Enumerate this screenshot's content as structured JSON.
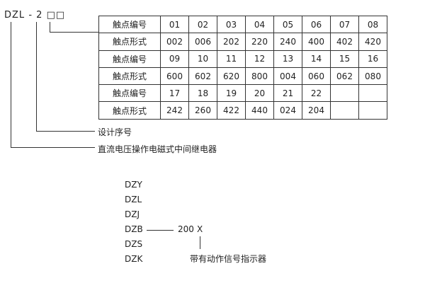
{
  "model_code": {
    "prefix": "DZL",
    "dash": "-",
    "design_no": "2",
    "boxes": "□□"
  },
  "contact_table": {
    "rows": [
      {
        "label": "触点编号",
        "cells": [
          "01",
          "02",
          "03",
          "04",
          "05",
          "06",
          "07",
          "08"
        ]
      },
      {
        "label": "触点形式",
        "cells": [
          "002",
          "006",
          "202",
          "220",
          "240",
          "400",
          "402",
          "420"
        ]
      },
      {
        "label": "触点编号",
        "cells": [
          "09",
          "10",
          "11",
          "12",
          "13",
          "14",
          "15",
          "16"
        ]
      },
      {
        "label": "触点形式",
        "cells": [
          "600",
          "602",
          "620",
          "800",
          "004",
          "060",
          "062",
          "080"
        ]
      },
      {
        "label": "触点编号",
        "cells": [
          "17",
          "18",
          "19",
          "20",
          "21",
          "22",
          "",
          ""
        ]
      },
      {
        "label": "触点形式",
        "cells": [
          "242",
          "260",
          "422",
          "440",
          "024",
          "204",
          "",
          ""
        ]
      }
    ]
  },
  "labels": {
    "design_no": "设计序号",
    "type": "直流电压操作电磁式中间继电器"
  },
  "series_list": [
    "DZY",
    "DZL",
    "DZJ",
    "DZB",
    "DZS",
    "DZK"
  ],
  "suffix": {
    "number": "200",
    "letter": "X",
    "note": "带有动作信号指示器"
  }
}
